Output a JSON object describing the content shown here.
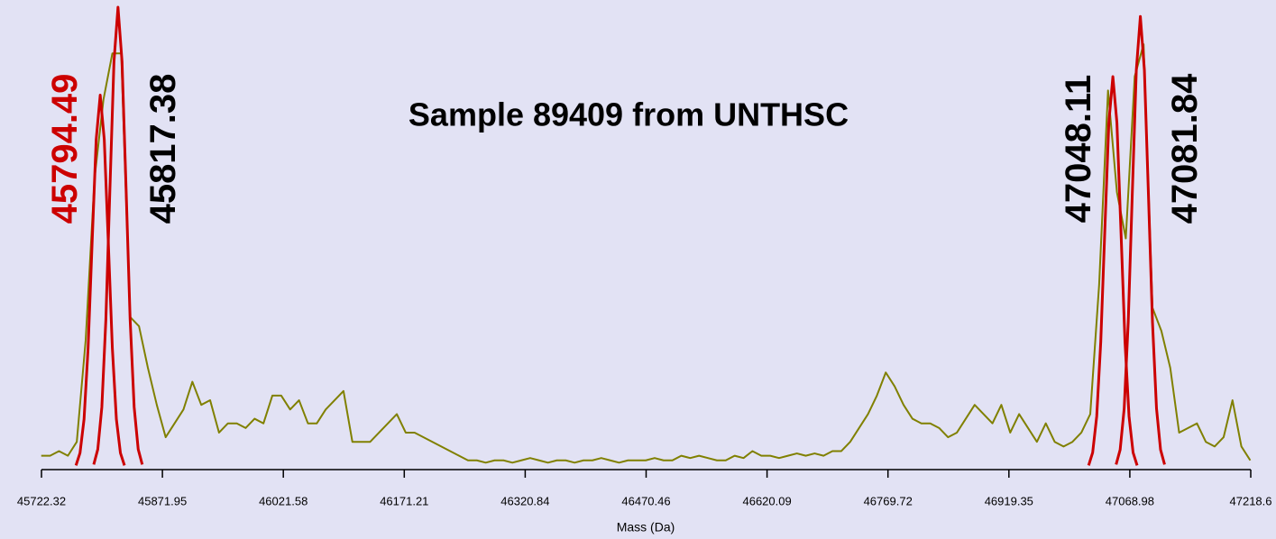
{
  "chart_data": {
    "type": "line",
    "title": "Sample 89409 from UNTHSC",
    "x_label": "Mass (Da)",
    "xlim": [
      45722.32,
      47218.6
    ],
    "xticks": [
      45722.32,
      45871.95,
      46021.58,
      46171.21,
      46320.84,
      46470.46,
      46620.09,
      46769.72,
      46919.35,
      47068.98,
      47218.6
    ],
    "ylim": [
      0,
      100
    ],
    "series": [
      {
        "color": "#808000",
        "x": [
          45722,
          45733,
          45744,
          45755,
          45766,
          45777,
          45788,
          45799,
          45810,
          45821,
          45832,
          45843,
          45854,
          45865,
          45876,
          45887,
          45898,
          45909,
          45920,
          45931,
          45942,
          45953,
          45964,
          45975,
          45986,
          45997,
          46008,
          46019,
          46030,
          46041,
          46052,
          46063,
          46074,
          46085,
          46096,
          46107,
          46118,
          46129,
          46140,
          46151,
          46162,
          46173,
          46184,
          46195,
          46206,
          46217,
          46228,
          46239,
          46250,
          46261,
          46272,
          46283,
          46294,
          46305,
          46316,
          46327,
          46338,
          46349,
          46360,
          46371,
          46382,
          46393,
          46404,
          46415,
          46426,
          46437,
          46448,
          46459,
          46470,
          46481,
          46492,
          46503,
          46514,
          46525,
          46536,
          46547,
          46558,
          46569,
          46580,
          46591,
          46602,
          46613,
          46624,
          46635,
          46646,
          46657,
          46668,
          46679,
          46690,
          46701,
          46712,
          46723,
          46734,
          46745,
          46756,
          46767,
          46778,
          46789,
          46800,
          46811,
          46822,
          46833,
          46844,
          46855,
          46866,
          46877,
          46888,
          46899,
          46910,
          46921,
          46932,
          46943,
          46954,
          46965,
          46976,
          46987,
          46998,
          47009,
          47020,
          47031,
          47042,
          47053,
          47064,
          47075,
          47086,
          47097,
          47108,
          47119,
          47130,
          47141,
          47152,
          47163,
          47174,
          47185,
          47196,
          47207,
          47218
        ],
        "values": [
          3,
          3,
          4,
          3,
          6,
          28,
          63,
          80,
          90,
          90,
          33,
          31,
          22,
          14,
          7,
          10,
          13,
          19,
          14,
          15,
          8,
          10,
          10,
          9,
          11,
          10,
          16,
          16,
          13,
          15,
          10,
          10,
          13,
          15,
          17,
          6,
          6,
          6,
          8,
          10,
          12,
          8,
          8,
          7,
          6,
          5,
          4,
          3,
          2,
          2,
          1.5,
          2,
          2,
          1.5,
          2,
          2.5,
          2,
          1.5,
          2,
          2,
          1.5,
          2,
          2,
          2.5,
          2,
          1.5,
          2,
          2,
          2,
          2.5,
          2,
          2,
          3,
          2.5,
          3,
          2.5,
          2,
          2,
          3,
          2.5,
          4,
          3,
          3,
          2.5,
          3,
          3.5,
          3,
          3.5,
          3,
          4,
          4,
          6,
          9,
          12,
          16,
          21,
          18,
          14,
          11,
          10,
          10,
          9,
          7,
          8,
          11,
          14,
          12,
          10,
          14,
          8,
          12,
          9,
          6,
          10,
          6,
          5,
          6,
          8,
          12,
          40,
          82,
          60,
          50,
          85,
          92,
          35,
          30,
          22,
          8,
          9,
          10,
          6,
          5,
          7,
          15,
          5,
          2
        ]
      },
      {
        "color": "#cc0000",
        "x": [
          45765,
          45770,
          45775,
          45780,
          45785,
          45790,
          45795,
          45800,
          45805,
          45810,
          45815,
          45820,
          45825
        ],
        "values": [
          0.9,
          3.6,
          10.9,
          26.3,
          49.2,
          71.4,
          81,
          71.4,
          49.2,
          26.3,
          10.9,
          3.6,
          0.9
        ]
      },
      {
        "color": "#cc0000",
        "x": [
          45787,
          45792,
          45797,
          45802,
          45807,
          45812,
          45817,
          45822,
          45827,
          45832,
          45837,
          45842,
          45847
        ],
        "values": [
          1.1,
          4.4,
          13.5,
          32.5,
          60.7,
          88.2,
          100,
          88.2,
          60.7,
          32.5,
          13.5,
          4.4,
          1.1
        ]
      },
      {
        "color": "#cc0000",
        "x": [
          47018,
          47023,
          47028,
          47033,
          47038,
          47043,
          47048,
          47053,
          47058,
          47063,
          47068,
          47073,
          47078
        ],
        "values": [
          0.9,
          3.7,
          11.5,
          27.6,
          51.6,
          75,
          85,
          75,
          51.6,
          27.6,
          11.5,
          3.7,
          0.9
        ]
      },
      {
        "color": "#cc0000",
        "x": [
          47052,
          47057,
          47062,
          47067,
          47072,
          47077,
          47082,
          47087,
          47092,
          47097,
          47102,
          47107,
          47112
        ],
        "values": [
          1.1,
          4.3,
          13.2,
          31.9,
          59.5,
          86.4,
          98,
          86.4,
          59.5,
          31.9,
          13.2,
          4.3,
          1.1
        ]
      }
    ],
    "annotations": [
      {
        "x": 45794.49,
        "label": "45794.49",
        "color": "#cc0000"
      },
      {
        "x": 45817.38,
        "label": "45817.38",
        "color": "#000000"
      },
      {
        "x": 47048.11,
        "label": "47048.11",
        "color": "#000000"
      },
      {
        "x": 47081.84,
        "label": "47081.84",
        "color": "#000000"
      }
    ]
  }
}
